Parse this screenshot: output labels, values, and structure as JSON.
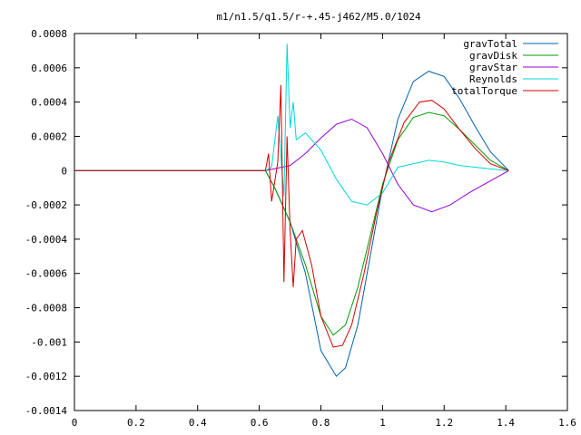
{
  "chart_data": {
    "type": "line",
    "title": "m1/n1.5/q1.5/r-+.45-j462/M5.0/1024",
    "xlabel": "",
    "ylabel": "",
    "xlim": [
      0,
      1.6
    ],
    "ylim": [
      -0.0014,
      0.0008
    ],
    "xticks": [
      0,
      0.2,
      0.4,
      0.6,
      0.8,
      1,
      1.2,
      1.4,
      1.6
    ],
    "xtick_labels": [
      "0",
      "0.2",
      "0.4",
      "0.6",
      "0.8",
      "1",
      "1.2",
      "1.4",
      "1.6"
    ],
    "yticks": [
      0.0008,
      0.0006,
      0.0004,
      0.0002,
      0,
      -0.0002,
      -0.0004,
      -0.0006,
      -0.0008,
      -0.001,
      -0.0012,
      -0.0014
    ],
    "ytick_labels": [
      "0.0008",
      "0.0006",
      "0.0004",
      "0.0002",
      "0",
      "-0.0002",
      "-0.0004",
      "-0.0006",
      "-0.0008",
      "-0.001",
      "-0.0012",
      "-0.0014"
    ],
    "grid": false,
    "legend_position": "top-right",
    "series": [
      {
        "name": "gravTotal",
        "color": "#0060ad",
        "x": [
          0,
          0.62,
          0.65,
          0.7,
          0.75,
          0.8,
          0.85,
          0.88,
          0.92,
          0.96,
          1.0,
          1.05,
          1.1,
          1.15,
          1.2,
          1.25,
          1.3,
          1.35,
          1.41
        ],
        "y": [
          0,
          0,
          -0.0001,
          -0.0003,
          -0.0006,
          -0.00105,
          -0.0012,
          -0.00115,
          -0.0009,
          -0.0005,
          -0.0001,
          0.0003,
          0.00052,
          0.00058,
          0.00055,
          0.00042,
          0.00026,
          0.00011,
          0
        ]
      },
      {
        "name": "gravDisk",
        "color": "#009e00",
        "x": [
          0,
          0.62,
          0.65,
          0.7,
          0.75,
          0.8,
          0.84,
          0.88,
          0.92,
          0.96,
          1.0,
          1.05,
          1.1,
          1.15,
          1.2,
          1.25,
          1.3,
          1.35,
          1.41
        ],
        "y": [
          0,
          0,
          -0.0001,
          -0.0003,
          -0.00055,
          -0.00085,
          -0.00096,
          -0.0009,
          -0.00068,
          -0.00038,
          -8e-05,
          0.00018,
          0.00031,
          0.00034,
          0.00032,
          0.00024,
          0.00015,
          6e-05,
          0
        ]
      },
      {
        "name": "gravStar",
        "color": "#9400d3",
        "x": [
          0,
          0.62,
          0.7,
          0.75,
          0.8,
          0.85,
          0.9,
          0.95,
          1.0,
          1.05,
          1.1,
          1.16,
          1.22,
          1.28,
          1.35,
          1.41
        ],
        "y": [
          0,
          0,
          3e-05,
          0.0001,
          0.00019,
          0.00027,
          0.0003,
          0.00025,
          0.0001,
          -8e-05,
          -0.0002,
          -0.00024,
          -0.0002,
          -0.00013,
          -6e-05,
          0
        ]
      },
      {
        "name": "Reynolds",
        "color": "#00d8d8",
        "x": [
          0,
          0.62,
          0.64,
          0.66,
          0.68,
          0.69,
          0.7,
          0.71,
          0.72,
          0.75,
          0.8,
          0.85,
          0.9,
          0.95,
          1.0,
          1.05,
          1.1,
          1.15,
          1.2,
          1.25,
          1.3,
          1.35,
          1.41
        ],
        "y": [
          0,
          0,
          2e-05,
          0.00032,
          -0.00015,
          0.00074,
          0.00025,
          0.0004,
          0.00018,
          0.00022,
          0.00012,
          -5e-05,
          -0.00018,
          -0.0002,
          -0.00013,
          2e-05,
          4e-05,
          6e-05,
          5e-05,
          3e-05,
          2e-05,
          1e-05,
          0
        ]
      },
      {
        "name": "totalTorque",
        "color": "#d40000",
        "x": [
          0,
          0.62,
          0.63,
          0.64,
          0.66,
          0.67,
          0.68,
          0.69,
          0.7,
          0.71,
          0.72,
          0.74,
          0.77,
          0.8,
          0.84,
          0.87,
          0.9,
          0.94,
          0.98,
          1.02,
          1.07,
          1.12,
          1.16,
          1.2,
          1.25,
          1.3,
          1.35,
          1.41
        ],
        "y": [
          0,
          0,
          0.0001,
          -0.00018,
          5e-05,
          0.0005,
          -0.00065,
          0.0002,
          -0.00035,
          -0.00068,
          -0.0004,
          -0.00035,
          -0.00055,
          -0.00085,
          -0.00103,
          -0.00102,
          -0.0009,
          -0.0006,
          -0.00025,
          5e-05,
          0.00028,
          0.0004,
          0.00041,
          0.00036,
          0.00024,
          0.00013,
          4e-05,
          0
        ]
      }
    ]
  }
}
